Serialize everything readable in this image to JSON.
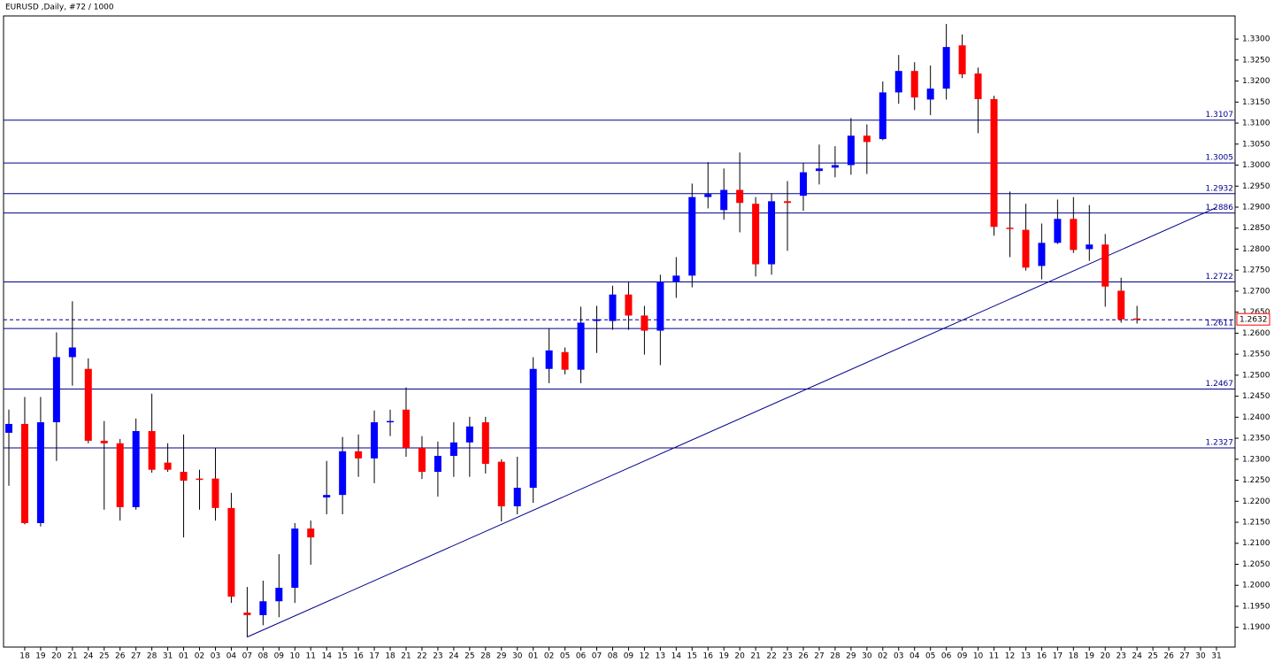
{
  "chart_data": {
    "type": "candlestick",
    "title": "EURUSD ,Daily, #72 / 1000",
    "categories": [
      null,
      "18",
      "19",
      "20",
      "21",
      "24",
      "25",
      "26",
      "27",
      "28",
      "31",
      "01",
      "02",
      "03",
      "04",
      "07",
      "08",
      "09",
      "10",
      "11",
      "14",
      "15",
      "16",
      "17",
      "18",
      "21",
      "22",
      "23",
      "24",
      "25",
      "28",
      "29",
      "30",
      "01",
      "02",
      "05",
      "06",
      "07",
      "08",
      "09",
      "12",
      "13",
      "14",
      "15",
      "16",
      "19",
      "20",
      "21",
      "22",
      "23",
      "26",
      "27",
      "28",
      "29",
      "30",
      "02",
      "03",
      "04",
      "05",
      "06",
      "09",
      "10",
      "11",
      "12",
      "13",
      "16",
      "17",
      "18",
      "19",
      "20",
      "23",
      "24",
      "25",
      "26",
      "27",
      "30",
      "31"
    ],
    "open": [
      1.2363,
      1.2384,
      1.2148,
      1.2388,
      1.2543,
      1.2515,
      1.2344,
      1.2338,
      1.2186,
      1.2367,
      1.2292,
      1.227,
      1.2254,
      1.2254,
      1.2184,
      1.1935,
      1.1929,
      1.1962,
      1.1994,
      1.2135,
      1.2209,
      1.2215,
      1.2319,
      1.2302,
      1.2388,
      1.2418,
      1.2327,
      1.227,
      1.2308,
      1.234,
      1.2388,
      1.2294,
      1.2188,
      1.2232,
      1.2515,
      1.2555,
      1.2513,
      1.2629,
      1.2629,
      1.2692,
      1.2642,
      1.2606,
      1.2722,
      1.2737,
      1.2924,
      1.2893,
      1.2941,
      1.2908,
      1.2764,
      1.2914,
      1.2927,
      1.2986,
      1.2994,
      1.3,
      1.307,
      1.3062,
      1.3173,
      1.3224,
      1.3156,
      1.3182,
      1.3285,
      1.3218,
      1.3157,
      1.2851,
      1.2846,
      1.276,
      1.2815,
      1.2872,
      1.28,
      1.2811,
      1.2701,
      1.2635,
      null,
      null,
      null,
      null,
      null
    ],
    "high": [
      1.2418,
      1.2448,
      1.2448,
      1.2602,
      1.2676,
      1.254,
      1.2391,
      1.2348,
      1.2397,
      1.2456,
      1.2338,
      1.2359,
      1.2275,
      1.2327,
      1.222,
      1.1996,
      1.2011,
      1.2074,
      1.2148,
      1.2154,
      1.2296,
      1.2353,
      1.2359,
      1.2416,
      1.2418,
      1.2471,
      1.2355,
      1.2342,
      1.2388,
      1.2401,
      1.2401,
      1.23,
      1.2306,
      1.2543,
      1.2612,
      1.2566,
      1.2663,
      1.2665,
      1.2713,
      1.2722,
      1.2665,
      1.2739,
      1.2781,
      1.2956,
      1.3007,
      1.2992,
      1.303,
      1.2924,
      1.2933,
      1.2962,
      1.3005,
      1.3049,
      1.3045,
      1.3112,
      1.3097,
      1.3199,
      1.3262,
      1.3245,
      1.3237,
      1.3336,
      1.3311,
      1.3232,
      1.3165,
      1.2937,
      1.2908,
      1.2861,
      1.2918,
      1.2924,
      1.2905,
      1.2836,
      1.2732,
      1.2665,
      null,
      null,
      null,
      null,
      null
    ],
    "low": [
      1.2237,
      1.2145,
      1.214,
      1.2296,
      1.2475,
      1.2338,
      1.218,
      1.2154,
      1.218,
      1.2268,
      1.227,
      1.2114,
      1.218,
      1.2154,
      1.1958,
      1.1877,
      1.1905,
      1.1924,
      1.1958,
      1.2049,
      1.2169,
      1.2169,
      1.2258,
      1.2243,
      1.2355,
      1.2306,
      1.2253,
      1.2211,
      1.2258,
      1.2258,
      1.2266,
      1.2152,
      1.2169,
      1.2196,
      1.2481,
      1.2502,
      1.2481,
      1.2553,
      1.2608,
      1.2608,
      1.2549,
      1.2524,
      1.2684,
      1.2709,
      1.2897,
      1.287,
      1.284,
      1.2735,
      1.2739,
      1.2796,
      1.2891,
      1.2954,
      1.2971,
      1.2977,
      1.2979,
      1.3059,
      1.3146,
      1.3131,
      1.3119,
      1.3156,
      1.3207,
      1.3076,
      1.2832,
      1.2781,
      1.2749,
      1.2728,
      1.2812,
      1.2791,
      1.2772,
      1.2663,
      1.2625,
      1.2623,
      null,
      null,
      null,
      null,
      null
    ],
    "close": [
      1.2384,
      1.2148,
      1.2388,
      1.2543,
      1.2566,
      1.2344,
      1.2338,
      1.2186,
      1.2367,
      1.2275,
      1.2275,
      1.2249,
      1.2252,
      1.2184,
      1.1973,
      1.1929,
      1.1962,
      1.1994,
      1.2135,
      1.2114,
      1.2215,
      1.2319,
      1.2302,
      1.2388,
      1.2391,
      1.2327,
      1.227,
      1.2308,
      1.234,
      1.2378,
      1.2289,
      1.2188,
      1.2232,
      1.2515,
      1.2559,
      1.2513,
      1.2625,
      1.2633,
      1.2692,
      1.2642,
      1.2606,
      1.2722,
      1.2737,
      1.2924,
      1.2931,
      1.2941,
      1.291,
      1.2764,
      1.2914,
      1.291,
      1.2983,
      1.2992,
      1.3,
      1.307,
      1.3055,
      1.3173,
      1.3224,
      1.3161,
      1.3182,
      1.3281,
      1.3216,
      1.3157,
      1.2853,
      1.2849,
      1.2756,
      1.2815,
      1.2872,
      1.2798,
      1.2811,
      1.2711,
      1.2633,
      1.2632,
      null,
      null,
      null,
      null,
      null
    ],
    "up_color": "#0000ff",
    "down_color": "#ff0000",
    "level_color": "#00008b",
    "ylim": [
      1.1853,
      1.3355
    ],
    "yticks": [
      {
        "value": 1.19,
        "label": "1.1900"
      },
      {
        "value": 1.195,
        "label": "1.1950"
      },
      {
        "value": 1.2,
        "label": "1.2000"
      },
      {
        "value": 1.205,
        "label": "1.2050"
      },
      {
        "value": 1.21,
        "label": "1.2100"
      },
      {
        "value": 1.215,
        "label": "1.2150"
      },
      {
        "value": 1.22,
        "label": "1.2200"
      },
      {
        "value": 1.225,
        "label": "1.2250"
      },
      {
        "value": 1.23,
        "label": "1.2300"
      },
      {
        "value": 1.235,
        "label": "1.2350"
      },
      {
        "value": 1.24,
        "label": "1.2400"
      },
      {
        "value": 1.245,
        "label": "1.2450"
      },
      {
        "value": 1.25,
        "label": "1.2500"
      },
      {
        "value": 1.255,
        "label": "1.2550"
      },
      {
        "value": 1.26,
        "label": "1.2600"
      },
      {
        "value": 1.265,
        "label": "1.2650"
      },
      {
        "value": 1.27,
        "label": "1.2700"
      },
      {
        "value": 1.275,
        "label": "1.2750"
      },
      {
        "value": 1.28,
        "label": "1.2800"
      },
      {
        "value": 1.285,
        "label": "1.2850"
      },
      {
        "value": 1.29,
        "label": "1.2900"
      },
      {
        "value": 1.295,
        "label": "1.2950"
      },
      {
        "value": 1.3,
        "label": "1.3000"
      },
      {
        "value": 1.305,
        "label": "1.3050"
      },
      {
        "value": 1.31,
        "label": "1.3100"
      },
      {
        "value": 1.315,
        "label": "1.3150"
      },
      {
        "value": 1.32,
        "label": "1.3200"
      },
      {
        "value": 1.325,
        "label": "1.3250"
      },
      {
        "value": 1.33,
        "label": "1.3300"
      }
    ],
    "levels": [
      1.3107,
      1.3005,
      1.2932,
      1.2886,
      1.2722,
      1.2611,
      1.2467,
      1.2327
    ],
    "current_price": 1.2632,
    "trendline": {
      "x": [
        15,
        76
      ],
      "values": [
        1.1877,
        1.2899
      ]
    }
  }
}
